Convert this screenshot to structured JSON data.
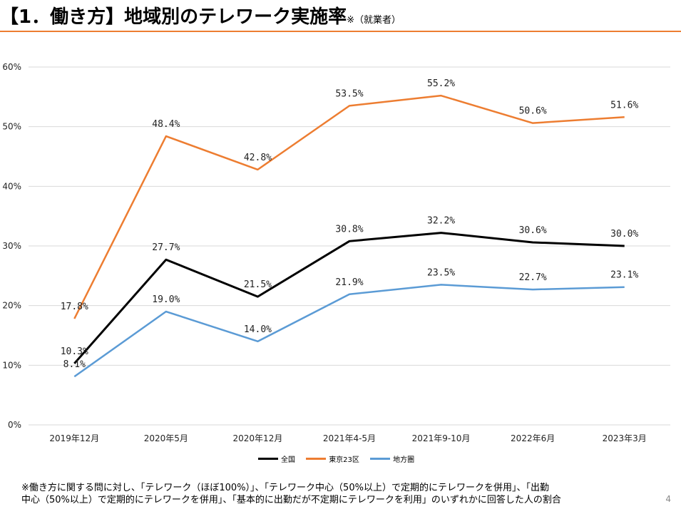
{
  "title": {
    "main": "【1．働き方】地域別のテレワーク実施率",
    "sub": "※（就業者）"
  },
  "chart_data": {
    "type": "line",
    "categories": [
      "2019年12月",
      "2020年5月",
      "2020年12月",
      "2021年4-5月",
      "2021年9-10月",
      "2022年6月",
      "2023年3月"
    ],
    "ylim": [
      0,
      60
    ],
    "yticks": [
      "0%",
      "10%",
      "20%",
      "30%",
      "40%",
      "50%",
      "60%"
    ],
    "ytick_values": [
      0,
      10,
      20,
      30,
      40,
      50,
      60
    ],
    "grid": true,
    "legend_position": "bottom",
    "series": [
      {
        "name": "全国",
        "color": "#000000",
        "values": [
          10.3,
          27.7,
          21.5,
          30.8,
          32.2,
          30.6,
          30.0
        ],
        "labels": [
          "10.3%",
          "27.7%",
          "21.5%",
          "30.8%",
          "32.2%",
          "30.6%",
          "30.0%"
        ]
      },
      {
        "name": "東京23区",
        "color": "#ED7D31",
        "values": [
          17.8,
          48.4,
          42.8,
          53.5,
          55.2,
          50.6,
          51.6
        ],
        "labels": [
          "17.8%",
          "48.4%",
          "42.8%",
          "53.5%",
          "55.2%",
          "50.6%",
          "51.6%"
        ]
      },
      {
        "name": "地方圏",
        "color": "#5B9BD5",
        "values": [
          8.1,
          19.0,
          14.0,
          21.9,
          23.5,
          22.7,
          23.1
        ],
        "labels": [
          "8.1%",
          "19.0%",
          "14.0%",
          "21.9%",
          "23.5%",
          "22.7%",
          "23.1%"
        ]
      }
    ]
  },
  "footnote": {
    "line1": "※働き方に関する問に対し、「テレワーク（ほぼ100%）」、「テレワーク中心（50%以上）で定期的にテレワークを併用」、「出勤",
    "line2": "中心（50%以上）で定期的にテレワークを併用」、「基本的に出勤だが不定期にテレワークを利用」のいずれかに回答した人の割合"
  },
  "page_number": "4"
}
